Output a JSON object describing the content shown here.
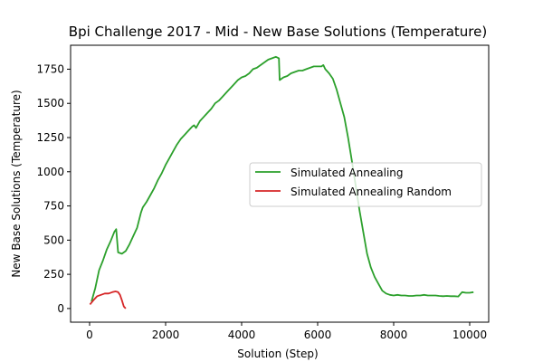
{
  "chart_data": {
    "type": "line",
    "title": "Bpi Challenge 2017 - Mid - New Base Solutions (Temperature)",
    "xlabel": "Solution (Step)",
    "ylabel": "New Base Solutions (Temperature)",
    "xlim": [
      -500,
      10500
    ],
    "ylim": [
      -100,
      1925
    ],
    "xticks": [
      0,
      2000,
      4000,
      6000,
      8000,
      10000
    ],
    "yticks": [
      0,
      250,
      500,
      750,
      1000,
      1250,
      1500,
      1750
    ],
    "legend_position": "center-right",
    "series": [
      {
        "name": "Simulated Annealing",
        "color": "#2ca02c",
        "x": [
          50,
          150,
          250,
          350,
          450,
          550,
          650,
          700,
          750,
          850,
          950,
          1050,
          1150,
          1250,
          1350,
          1400,
          1500,
          1600,
          1700,
          1800,
          1900,
          2000,
          2100,
          2200,
          2300,
          2400,
          2500,
          2600,
          2700,
          2750,
          2800,
          2900,
          3000,
          3100,
          3200,
          3300,
          3400,
          3500,
          3600,
          3700,
          3800,
          3900,
          4000,
          4100,
          4200,
          4300,
          4400,
          4500,
          4600,
          4700,
          4800,
          4900,
          4980,
          5000,
          5100,
          5200,
          5300,
          5400,
          5500,
          5600,
          5700,
          5800,
          5900,
          6000,
          6100,
          6150,
          6200,
          6300,
          6400,
          6500,
          6600,
          6700,
          6800,
          6900,
          7000,
          7100,
          7200,
          7300,
          7400,
          7500,
          7600,
          7700,
          7800,
          7900,
          8000,
          8100,
          8200,
          8300,
          8400,
          8500,
          8600,
          8700,
          8800,
          8900,
          9000,
          9100,
          9200,
          9300,
          9400,
          9500,
          9600,
          9700,
          9800,
          9900,
          10000,
          10100
        ],
        "values": [
          50,
          150,
          280,
          350,
          430,
          490,
          560,
          580,
          410,
          400,
          420,
          470,
          530,
          590,
          700,
          740,
          780,
          830,
          880,
          940,
          990,
          1050,
          1100,
          1150,
          1200,
          1240,
          1270,
          1300,
          1330,
          1340,
          1320,
          1370,
          1400,
          1430,
          1460,
          1500,
          1520,
          1550,
          1580,
          1610,
          1640,
          1670,
          1690,
          1700,
          1720,
          1750,
          1760,
          1780,
          1800,
          1820,
          1830,
          1840,
          1830,
          1670,
          1690,
          1700,
          1720,
          1730,
          1740,
          1740,
          1750,
          1760,
          1770,
          1770,
          1770,
          1780,
          1750,
          1720,
          1680,
          1600,
          1500,
          1400,
          1250,
          1080,
          900,
          720,
          560,
          400,
          300,
          230,
          180,
          130,
          110,
          100,
          95,
          100,
          95,
          95,
          92,
          92,
          95,
          95,
          100,
          95,
          95,
          95,
          92,
          90,
          92,
          90,
          90,
          88,
          120,
          115,
          115,
          120
        ],
        "x_dense_note": ""
      },
      {
        "name": "Simulated Annealing Random",
        "color": "#d62728",
        "x": [
          10,
          100,
          200,
          300,
          400,
          500,
          600,
          680,
          750,
          800,
          850,
          900,
          950
        ],
        "values": [
          30,
          60,
          90,
          100,
          110,
          110,
          120,
          125,
          120,
          100,
          60,
          15,
          0
        ]
      }
    ]
  }
}
